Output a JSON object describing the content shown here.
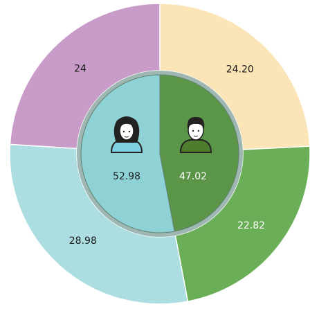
{
  "chart_data": [
    {
      "type": "pie",
      "values": [
        47.02,
        52.98
      ],
      "colors": [
        "#5b9648",
        "#8ed2d5"
      ],
      "label_colors": [
        "#ffffff",
        "#1a1a1a"
      ]
    },
    {
      "type": "donut",
      "values": [
        24.2,
        22.82,
        28.98,
        24
      ],
      "value_labels": [
        "24.20",
        "22.82",
        "28.98",
        "24"
      ],
      "colors": [
        "#fbe4b6",
        "#6aaf58",
        "#acdde1",
        "#c99bc8"
      ],
      "label_colors": [
        "#1a1a1a",
        "#ffffff",
        "#1a1a1a",
        "#1a1a1a"
      ]
    }
  ]
}
